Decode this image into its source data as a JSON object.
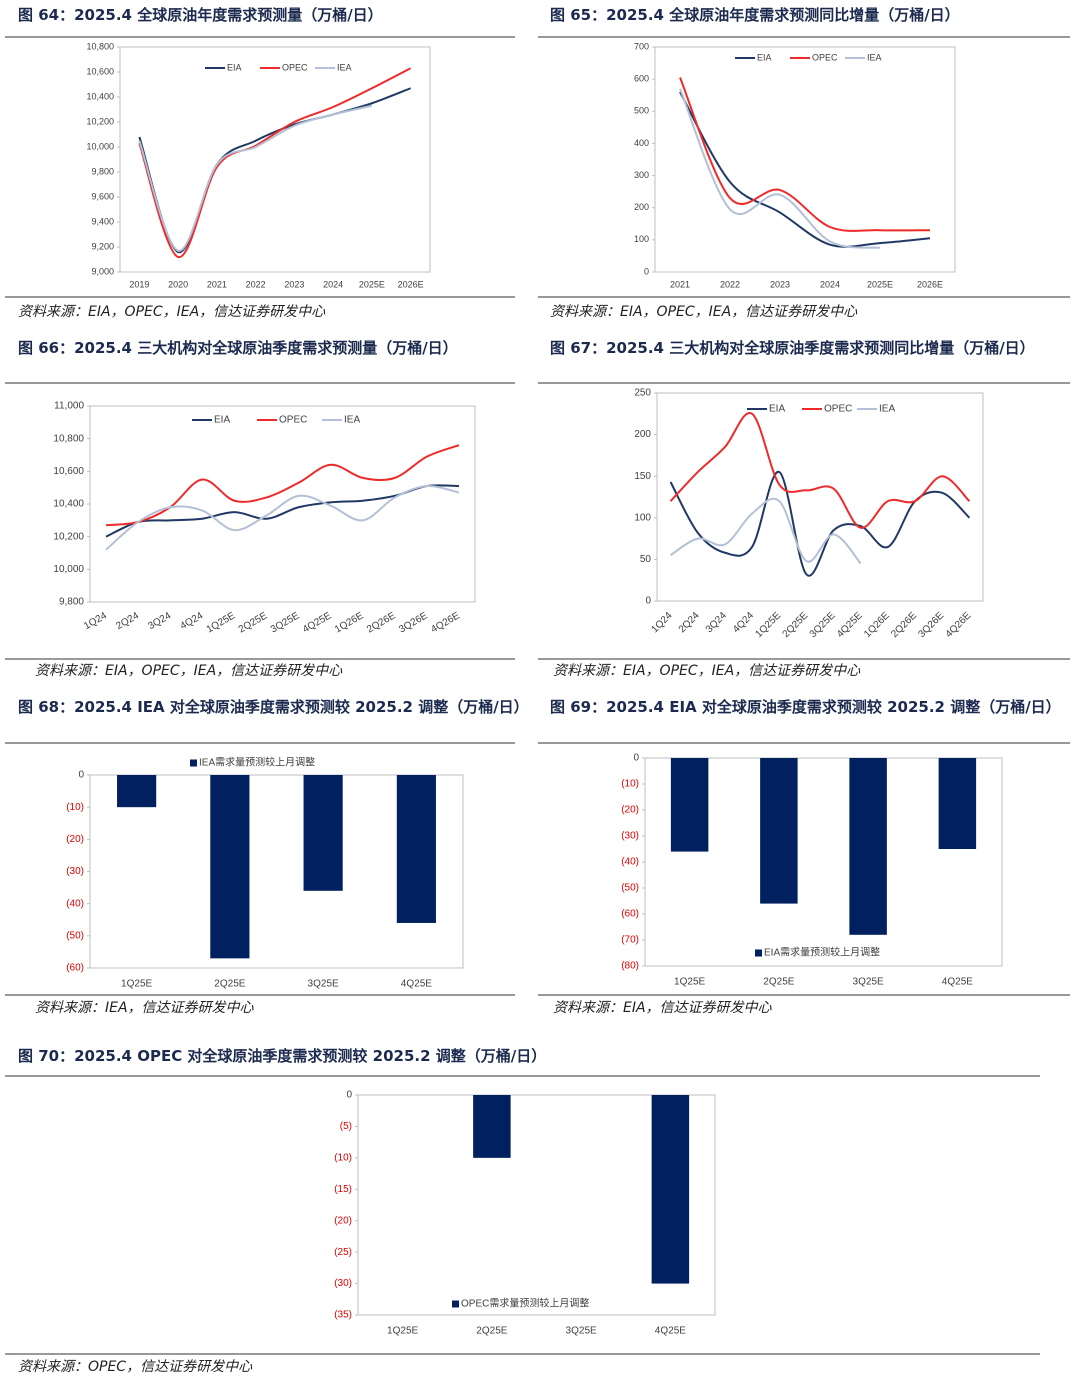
{
  "chart_data": [
    {
      "type": "line",
      "title": "图 64：2025.4 全球原油年度需求预测量（万桶/日）",
      "source": "资料来源：EIA，OPEC，IEA，信达证券研发中心",
      "categories": [
        "2019",
        "2020",
        "2021",
        "2022",
        "2023",
        "2024",
        "2025E",
        "2026E"
      ],
      "series": [
        {
          "name": "EIA",
          "color": "#1f3864",
          "values": [
            10080,
            9160,
            9860,
            10050,
            10180,
            10260,
            10350,
            10470
          ]
        },
        {
          "name": "OPEC",
          "color": "#ee2a2a",
          "values": [
            10030,
            9120,
            9840,
            10010,
            10200,
            10320,
            10470,
            10630
          ]
        },
        {
          "name": "IEA",
          "color": "#b4c0d6",
          "values": [
            10050,
            9170,
            9860,
            10000,
            10170,
            10260,
            10330,
            null
          ]
        }
      ],
      "ylim": [
        9000,
        10800
      ],
      "yticks": [
        {
          "value": 9000,
          "label": "9,000"
        },
        {
          "value": 9200,
          "label": "9,200"
        },
        {
          "value": 9400,
          "label": "9,400"
        },
        {
          "value": 9600,
          "label": "9,600"
        },
        {
          "value": 9800,
          "label": "9,800"
        },
        {
          "value": 10000,
          "label": "10,000"
        },
        {
          "value": 10200,
          "label": "10,200"
        },
        {
          "value": 10400,
          "label": "10,400"
        },
        {
          "value": 10600,
          "label": "10,600"
        },
        {
          "value": 10800,
          "label": "10,800"
        }
      ],
      "grid": false,
      "legend": "top"
    },
    {
      "type": "line",
      "title": "图 65：2025.4 全球原油年度需求预测同比增量（万桶/日）",
      "source": "资料来源：EIA，OPEC，IEA，信达证券研发中心",
      "categories": [
        "2021",
        "2022",
        "2023",
        "2024",
        "2025E",
        "2026E"
      ],
      "series": [
        {
          "name": "EIA",
          "color": "#1f3864",
          "values": [
            560,
            280,
            185,
            85,
            90,
            105
          ]
        },
        {
          "name": "OPEC",
          "color": "#ee2a2a",
          "values": [
            605,
            230,
            255,
            140,
            130,
            130
          ]
        },
        {
          "name": "IEA",
          "color": "#b4c0d6",
          "values": [
            570,
            195,
            240,
            95,
            75,
            null
          ]
        }
      ],
      "ylim": [
        0,
        700
      ],
      "yticks": [
        0,
        100,
        200,
        300,
        400,
        500,
        600,
        700
      ],
      "grid": false,
      "legend": "top"
    },
    {
      "type": "line",
      "title": "图 66：2025.4 三大机构对全球原油季度需求预测量（万桶/日）",
      "source": "资料来源：EIA，OPEC，IEA，信达证券研发中心",
      "categories": [
        "1Q24",
        "2Q24",
        "3Q24",
        "4Q24",
        "1Q25E",
        "2Q25E",
        "3Q25E",
        "4Q25E",
        "1Q26E",
        "2Q26E",
        "3Q26E",
        "4Q26E"
      ],
      "series": [
        {
          "name": "EIA",
          "color": "#1f3864",
          "values": [
            10200,
            10290,
            10300,
            10310,
            10350,
            10310,
            10380,
            10410,
            10420,
            10450,
            10510,
            10510
          ]
        },
        {
          "name": "OPEC",
          "color": "#ee2a2a",
          "values": [
            10270,
            10290,
            10380,
            10550,
            10420,
            10440,
            10530,
            10640,
            10560,
            10560,
            10690,
            10760
          ]
        },
        {
          "name": "IEA",
          "color": "#b4c0d6",
          "values": [
            10120,
            10290,
            10380,
            10360,
            10240,
            10330,
            10450,
            10390,
            10300,
            10440,
            10510,
            10470
          ]
        }
      ],
      "ylim": [
        9800,
        11000
      ],
      "yticks": [
        {
          "value": 9800,
          "label": "9,800"
        },
        {
          "value": 10000,
          "label": "10,000"
        },
        {
          "value": 10200,
          "label": "10,200"
        },
        {
          "value": 10400,
          "label": "10,400"
        },
        {
          "value": 10600,
          "label": "10,600"
        },
        {
          "value": 10800,
          "label": "10,800"
        },
        {
          "value": 11000,
          "label": "11,000"
        }
      ],
      "grid": false,
      "legend": "top"
    },
    {
      "type": "line",
      "title": "图 67：2025.4 三大机构对全球原油季度需求预测同比增量（万桶/日）",
      "source": "资料来源：EIA，OPEC，IEA，信达证券研发中心",
      "categories": [
        "1Q24",
        "2Q24",
        "3Q24",
        "4Q24",
        "1Q25E",
        "2Q25E",
        "3Q25E",
        "4Q25E",
        "1Q26E",
        "2Q26E",
        "3Q26E",
        "4Q26E"
      ],
      "series": [
        {
          "name": "EIA",
          "color": "#1f3864",
          "values": [
            143,
            82,
            58,
            65,
            155,
            32,
            85,
            90,
            65,
            120,
            130,
            100
          ]
        },
        {
          "name": "OPEC",
          "color": "#ee2a2a",
          "values": [
            120,
            155,
            185,
            225,
            140,
            133,
            135,
            88,
            120,
            120,
            150,
            120
          ]
        },
        {
          "name": "IEA",
          "color": "#b4c0d6",
          "values": [
            55,
            75,
            68,
            105,
            120,
            48,
            80,
            45,
            null,
            null,
            null,
            null
          ]
        }
      ],
      "ylim": [
        0,
        250
      ],
      "yticks": [
        0,
        50,
        100,
        150,
        200,
        250
      ],
      "grid": false,
      "legend": "top"
    },
    {
      "type": "bar",
      "title": "图 68：2025.4 IEA 对全球原油季度需求预测较 2025.2 调整（万桶/日）",
      "source": "资料来源：IEA，信达证券研发中心",
      "categories": [
        "1Q25E",
        "2Q25E",
        "3Q25E",
        "4Q25E"
      ],
      "series": [
        {
          "name": "IEA需求量预测较上月调整",
          "color": "#002060",
          "values": [
            -10,
            -57,
            -36,
            -46
          ]
        }
      ],
      "ylim": [
        -60,
        0
      ],
      "yticks": [
        {
          "value": -60,
          "label": "(60)"
        },
        {
          "value": -50,
          "label": "(50)"
        },
        {
          "value": -40,
          "label": "(40)"
        },
        {
          "value": -30,
          "label": "(30)"
        },
        {
          "value": -20,
          "label": "(20)"
        },
        {
          "value": -10,
          "label": "(10)"
        },
        0
      ],
      "negative_label_color": "#e00000",
      "grid": false,
      "legend": "top"
    },
    {
      "type": "bar",
      "title": "图 69：2025.4 EIA 对全球原油季度需求预测较 2025.2 调整（万桶/日）",
      "source": "资料来源：EIA，信达证券研发中心",
      "categories": [
        "1Q25E",
        "2Q25E",
        "3Q25E",
        "4Q25E"
      ],
      "series": [
        {
          "name": "EIA需求量预测较上月调整",
          "color": "#002060",
          "values": [
            -36,
            -56,
            -68,
            -35
          ]
        }
      ],
      "ylim": [
        -80,
        0
      ],
      "yticks": [
        {
          "value": -80,
          "label": "(80)"
        },
        {
          "value": -70,
          "label": "(70)"
        },
        {
          "value": -60,
          "label": "(60)"
        },
        {
          "value": -50,
          "label": "(50)"
        },
        {
          "value": -40,
          "label": "(40)"
        },
        {
          "value": -30,
          "label": "(30)"
        },
        {
          "value": -20,
          "label": "(20)"
        },
        {
          "value": -10,
          "label": "(10)"
        },
        0
      ],
      "negative_label_color": "#e00000",
      "grid": false,
      "legend": "bottom"
    },
    {
      "type": "bar",
      "title": "图 70：2025.4 OPEC 对全球原油季度需求预测较 2025.2 调整（万桶/日）",
      "source": "资料来源：OPEC，信达证券研发中心",
      "categories": [
        "1Q25E",
        "2Q25E",
        "3Q25E",
        "4Q25E"
      ],
      "series": [
        {
          "name": "OPEC需求量预测较上月调整",
          "color": "#002060",
          "values": [
            0,
            -10,
            0,
            -30
          ]
        }
      ],
      "ylim": [
        -35,
        0
      ],
      "yticks": [
        {
          "value": -35,
          "label": "(35)"
        },
        {
          "value": -30,
          "label": "(30)"
        },
        {
          "value": -25,
          "label": "(25)"
        },
        {
          "value": -20,
          "label": "(20)"
        },
        {
          "value": -15,
          "label": "(15)"
        },
        {
          "value": -10,
          "label": "(10)"
        },
        {
          "value": -5,
          "label": "(5)"
        },
        0
      ],
      "negative_label_color": "#e00000",
      "grid": false,
      "legend": "bottom"
    }
  ]
}
